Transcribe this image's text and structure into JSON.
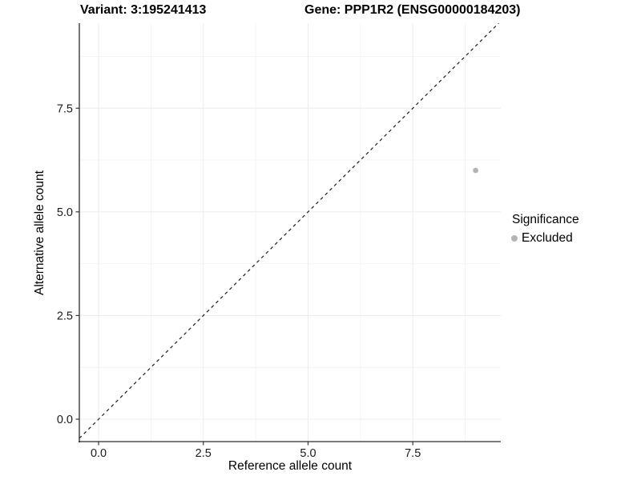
{
  "header": {
    "variant_title": "Variant: 3:195241413",
    "gene_title": "Gene: PPP1R2 (ENSG00000184203)"
  },
  "chart_data": {
    "type": "scatter",
    "xlabel": "Reference allele count",
    "ylabel": "Alternative allele count",
    "x_ticks": [
      0.0,
      2.5,
      5.0,
      7.5
    ],
    "y_ticks": [
      0.0,
      2.5,
      5.0,
      7.5
    ],
    "x_minor_gridlines": [
      1.25,
      3.75,
      6.25,
      8.75
    ],
    "y_minor_gridlines": [
      1.25,
      3.75,
      6.25,
      8.75
    ],
    "xlim": [
      -0.46,
      9.6
    ],
    "ylim": [
      -0.54,
      9.55
    ],
    "tick_decimals": 1,
    "grid": true,
    "points": [
      {
        "x": 9,
        "y": 6,
        "significance": "Excluded"
      }
    ],
    "reference_line": {
      "type": "identity",
      "slope": 1,
      "intercept": 0,
      "style": "dashed"
    },
    "legend": {
      "title": "Significance",
      "position": "right",
      "items": [
        {
          "label": "Excluded",
          "color": "#b4b4b4"
        }
      ]
    },
    "colors": {
      "point": "#b4b4b4",
      "dashed_line": "#1a1a1a",
      "axis_line": "#2b2b2b",
      "tick_mark": "#333333",
      "tick_label": "#1a1a1a",
      "grid_major": "#ececec",
      "grid_minor": "#f4f4f4",
      "background": "#ffffff"
    }
  }
}
